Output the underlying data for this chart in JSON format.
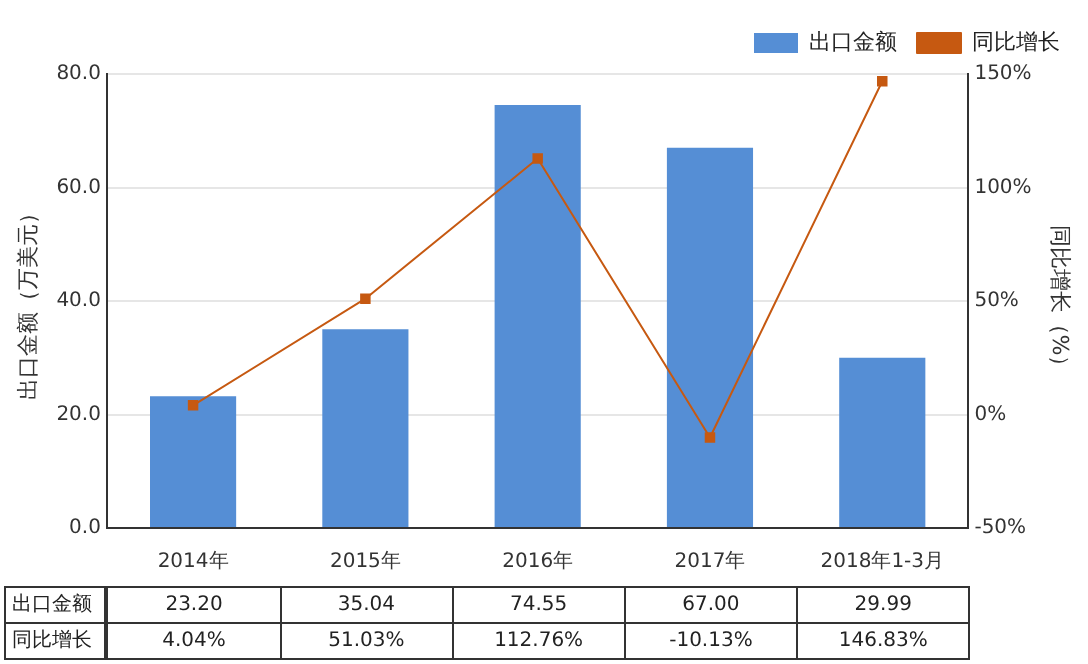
{
  "chart_data": {
    "type": "bar",
    "ylabel": "出口金额（万美元）",
    "y2label": "同比增长（%）",
    "categories": [
      "2014年",
      "2015年",
      "2016年",
      "2017年",
      "2018年1-3月"
    ],
    "series": [
      {
        "name": "出口金额",
        "color": "#558ed5",
        "values": [
          23.2,
          35.04,
          74.55,
          67.0,
          29.99
        ],
        "value_labels": [
          "23.20",
          "35.04",
          "74.55",
          "67.00",
          "29.99"
        ]
      },
      {
        "name": "同比增长",
        "type": "line",
        "axis": "y2",
        "color": "#c65911",
        "values": [
          4.04,
          51.03,
          112.76,
          -10.13,
          146.83
        ],
        "value_labels": [
          "4.04%",
          "51.03%",
          "112.76%",
          "-10.13%",
          "146.83%"
        ]
      }
    ],
    "ylim": [
      0,
      80
    ],
    "yticks": [
      {
        "value": 0,
        "label": "0.0"
      },
      {
        "value": 20,
        "label": "20.0"
      },
      {
        "value": 40,
        "label": "40.0"
      },
      {
        "value": 60,
        "label": "60.0"
      },
      {
        "value": 80,
        "label": "80.0"
      }
    ],
    "y2lim": [
      -50,
      150
    ],
    "y2ticks": [
      {
        "value": -50,
        "label": "-50%"
      },
      {
        "value": 0,
        "label": "0%"
      },
      {
        "value": 50,
        "label": "50%"
      },
      {
        "value": 100,
        "label": "100%"
      },
      {
        "value": 150,
        "label": "150%"
      }
    ],
    "grid": "y",
    "legend": "top right",
    "marker": "square",
    "line_style": "solid"
  }
}
